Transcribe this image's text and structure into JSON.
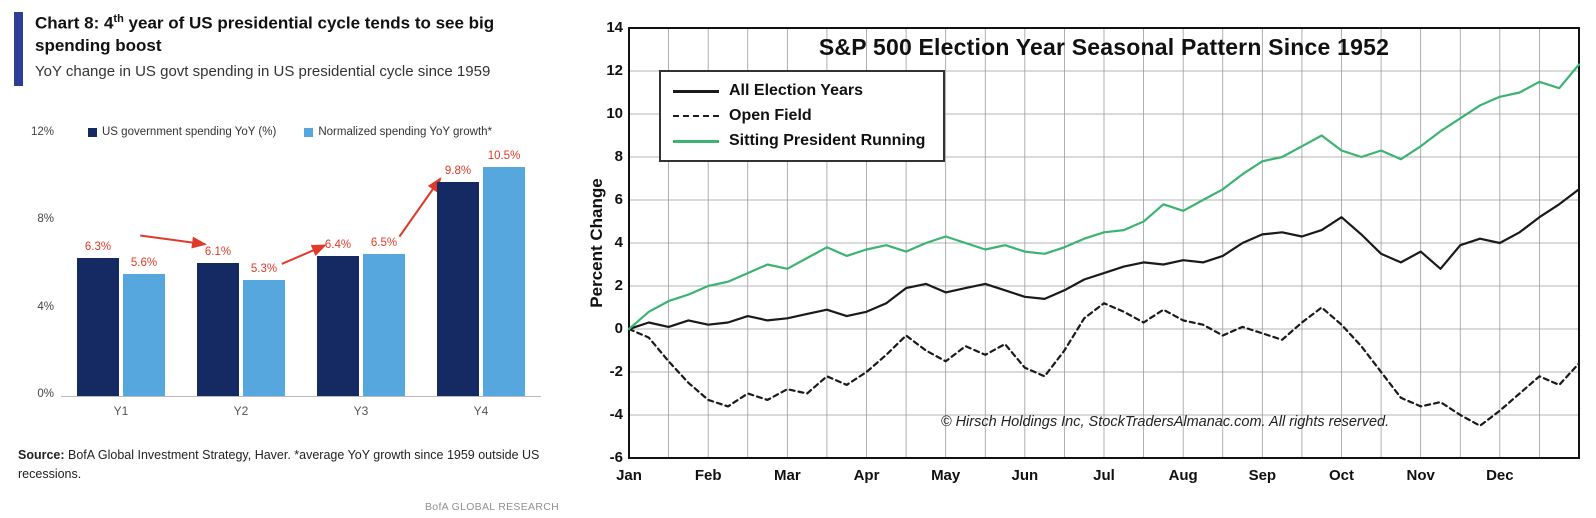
{
  "left_panel": {
    "title_prefix": "Chart 8: 4",
    "title_sup": "th",
    "title_rest": " year of US presidential cycle tends to see big spending boost",
    "subtitle": "YoY change in US govt spending in US presidential cycle since 1959",
    "source_label": "Source:",
    "source_text": " BofA Global Investment Strategy, Haver. *average YoY growth since 1959 outside US recessions.",
    "watermark": "BofA GLOBAL RESEARCH",
    "accent_color": "#2e3d96"
  },
  "chart_data": [
    {
      "type": "bar",
      "title": "YoY change in US govt spending in US presidential cycle since 1959",
      "categories": [
        "Y1",
        "Y2",
        "Y3",
        "Y4"
      ],
      "series": [
        {
          "name": "US government spending YoY (%)",
          "color": "#152a63",
          "values": [
            6.3,
            6.1,
            6.4,
            9.8
          ]
        },
        {
          "name": "Normalized spending YoY growth*",
          "color": "#55a7dd",
          "values": [
            5.6,
            5.3,
            6.5,
            10.5
          ]
        }
      ],
      "ylim": [
        0,
        12
      ],
      "y_ticks": [
        0,
        4,
        8,
        12
      ],
      "y_tick_suffix": "%",
      "grid": false,
      "value_label_color": "#e03a2a",
      "annotations": {
        "arrow_color": "#e03a2a",
        "arrows": [
          {
            "x1": 0.165,
            "y1": 7.35,
            "x2": 0.3,
            "y2": 6.95
          },
          {
            "x1": 0.46,
            "y1": 6.05,
            "x2": 0.55,
            "y2": 6.9
          },
          {
            "x1": 0.705,
            "y1": 7.3,
            "x2": 0.79,
            "y2": 9.95
          }
        ]
      }
    },
    {
      "type": "line",
      "title": "S&P 500 Election Year Seasonal Pattern Since 1952",
      "ylabel": "Percent Change",
      "ylim": [
        -6,
        14
      ],
      "y_ticks": [
        14,
        12,
        10,
        8,
        6,
        4,
        2,
        0,
        -2,
        -4,
        -6
      ],
      "x_ticks": [
        "Jan",
        "Feb",
        "Mar",
        "Apr",
        "May",
        "Jun",
        "Jul",
        "Aug",
        "Sep",
        "Oct",
        "Nov",
        "Dec"
      ],
      "points_per_month": 4,
      "grid": true,
      "legend_position": "top-left",
      "copyright": "© Hirsch Holdings Inc, StockTradersAlmanac.com.  All rights reserved.",
      "series": [
        {
          "name": "All Election Years",
          "style": "solid",
          "color": "#1a1a1a",
          "values": [
            0.0,
            0.3,
            0.1,
            0.4,
            0.2,
            0.3,
            0.6,
            0.4,
            0.5,
            0.7,
            0.9,
            0.6,
            0.8,
            1.2,
            1.9,
            2.1,
            1.7,
            1.9,
            2.1,
            1.8,
            1.5,
            1.4,
            1.8,
            2.3,
            2.6,
            2.9,
            3.1,
            3.0,
            3.2,
            3.1,
            3.4,
            4.0,
            4.4,
            4.5,
            4.3,
            4.6,
            5.2,
            4.4,
            3.5,
            3.1,
            3.6,
            2.8,
            3.9,
            4.2,
            4.0,
            4.5,
            5.2,
            5.8,
            6.5
          ]
        },
        {
          "name": "Open Field",
          "style": "dashed",
          "color": "#1a1a1a",
          "values": [
            0.0,
            -0.4,
            -1.5,
            -2.5,
            -3.3,
            -3.6,
            -3.0,
            -3.3,
            -2.8,
            -3.0,
            -2.2,
            -2.6,
            -2.0,
            -1.2,
            -0.3,
            -1.0,
            -1.5,
            -0.8,
            -1.2,
            -0.7,
            -1.8,
            -2.2,
            -1.0,
            0.5,
            1.2,
            0.8,
            0.3,
            0.9,
            0.4,
            0.2,
            -0.3,
            0.1,
            -0.2,
            -0.5,
            0.3,
            1.0,
            0.2,
            -0.8,
            -2.0,
            -3.2,
            -3.6,
            -3.4,
            -4.0,
            -4.5,
            -3.8,
            -3.0,
            -2.2,
            -2.6,
            -1.6
          ]
        },
        {
          "name": "Sitting President Running",
          "style": "solid",
          "color": "#3cb371",
          "values": [
            0.0,
            0.8,
            1.3,
            1.6,
            2.0,
            2.2,
            2.6,
            3.0,
            2.8,
            3.3,
            3.8,
            3.4,
            3.7,
            3.9,
            3.6,
            4.0,
            4.3,
            4.0,
            3.7,
            3.9,
            3.6,
            3.5,
            3.8,
            4.2,
            4.5,
            4.6,
            5.0,
            5.8,
            5.5,
            6.0,
            6.5,
            7.2,
            7.8,
            8.0,
            8.5,
            9.0,
            8.3,
            8.0,
            8.3,
            7.9,
            8.5,
            9.2,
            9.8,
            10.4,
            10.8,
            11.0,
            11.5,
            11.2,
            12.3
          ]
        }
      ]
    }
  ]
}
